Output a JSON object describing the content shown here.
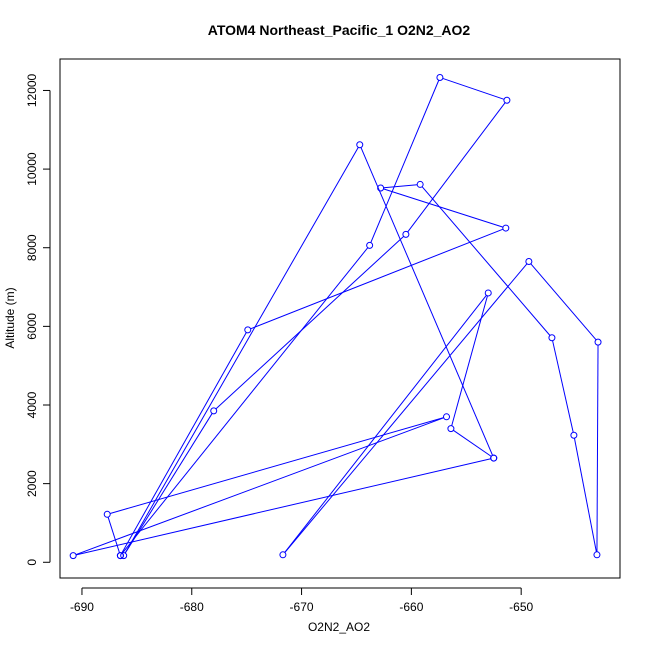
{
  "chart_data": {
    "type": "line",
    "title": "ATOM4 Northeast_Pacific_1 O2N2_AO2",
    "xlabel": "O2N2_AO2",
    "ylabel": "Altitude (m)",
    "xlim": [
      -692,
      -641
    ],
    "ylim": [
      -400,
      12800
    ],
    "xticks": [
      -690,
      -680,
      -670,
      -660,
      -650
    ],
    "yticks": [
      0,
      2000,
      4000,
      6000,
      8000,
      10000,
      12000
    ],
    "xtick_labels": [
      "-690",
      "-680",
      "-670",
      "-660",
      "-650"
    ],
    "ytick_labels": [
      "0",
      "2000",
      "4000",
      "6000",
      "8000",
      "10000",
      "12000"
    ],
    "colors": {
      "series": "#0000ff",
      "axis": "#000000",
      "background": "#ffffff"
    },
    "marker": "open-circle",
    "series": [
      {
        "x": [
          -652.5,
          -664.7,
          -686.2,
          -678.0,
          -660.5,
          -651.3,
          -657.4,
          -663.8,
          -686.5,
          -687.7,
          -656.8,
          -690.8,
          -652.5,
          -656.4,
          -653.0,
          -671.7,
          -649.3,
          -643.0,
          -643.1,
          -645.2,
          -647.2,
          -659.2,
          -662.8,
          -651.4,
          -674.9,
          -686.5
        ],
        "y": [
          2650,
          10620,
          170,
          3850,
          8340,
          11750,
          12330,
          8060,
          170,
          1220,
          3700,
          170,
          2650,
          3400,
          6850,
          190,
          7650,
          5600,
          190,
          3230,
          5710,
          9610,
          9520,
          8500,
          5910,
          170
        ]
      }
    ]
  }
}
